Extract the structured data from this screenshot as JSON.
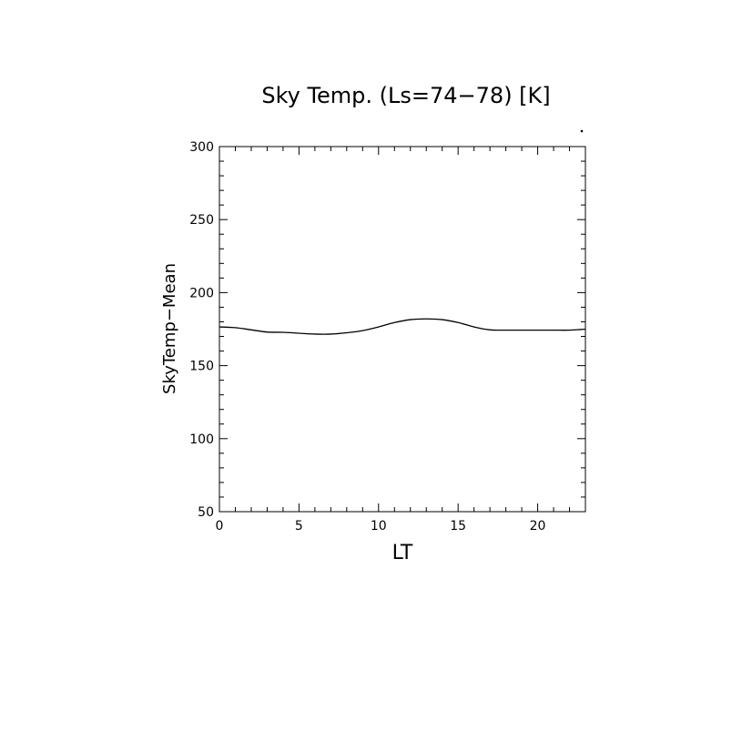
{
  "chart_data": {
    "type": "line",
    "title": "Sky Temp. (Ls=74−78) [K]",
    "xlabel": "LT",
    "ylabel": "SkyTemp−Mean",
    "xlim": [
      0,
      23
    ],
    "ylim": [
      50,
      300
    ],
    "x_ticks": [
      0,
      5,
      10,
      15,
      20
    ],
    "x_tick_labels": [
      "0",
      "5",
      "10",
      "15",
      "20"
    ],
    "y_ticks": [
      50,
      100,
      150,
      200,
      250,
      300
    ],
    "y_tick_labels": [
      "50",
      "100",
      "150",
      "200",
      "250",
      "300"
    ],
    "grid": false,
    "series": [
      {
        "x": [
          0,
          1,
          2,
          3,
          4,
          5,
          6,
          7,
          8,
          9,
          10,
          11,
          12,
          13,
          14,
          15,
          16,
          17,
          18,
          19,
          20,
          21,
          22,
          23
        ],
        "values": [
          176.5,
          176,
          174.5,
          173,
          172.8,
          172.2,
          171.6,
          171.6,
          172.5,
          174,
          176.5,
          179.5,
          181.5,
          182,
          181.5,
          179.5,
          176.5,
          174.5,
          174.3,
          174.3,
          174.3,
          174.3,
          174.3,
          175
        ]
      }
    ]
  }
}
